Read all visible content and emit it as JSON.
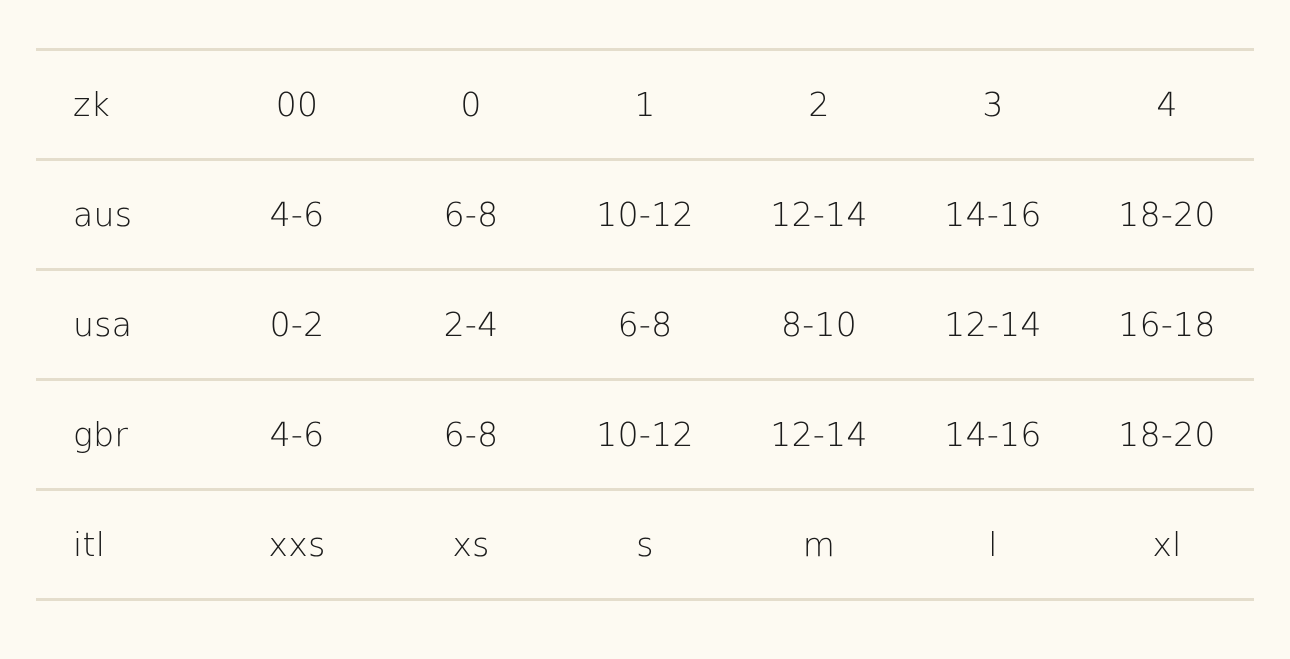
{
  "colors": {
    "background": "#fdfaf2",
    "divider": "#e4ddcc",
    "text": "#1b1b1b"
  },
  "size_table": {
    "rows": [
      {
        "label": "zk",
        "cells": [
          "00",
          "0",
          "1",
          "2",
          "3",
          "4"
        ]
      },
      {
        "label": "aus",
        "cells": [
          "4-6",
          "6-8",
          "10-12",
          "12-14",
          "14-16",
          "18-20"
        ]
      },
      {
        "label": "usa",
        "cells": [
          "0-2",
          "2-4",
          "6-8",
          "8-10",
          "12-14",
          "16-18"
        ]
      },
      {
        "label": "gbr",
        "cells": [
          "4-6",
          "6-8",
          "10-12",
          "12-14",
          "14-16",
          "18-20"
        ]
      },
      {
        "label": "itl",
        "cells": [
          "xxs",
          "xs",
          "s",
          "m",
          "l",
          "xl"
        ]
      }
    ]
  }
}
